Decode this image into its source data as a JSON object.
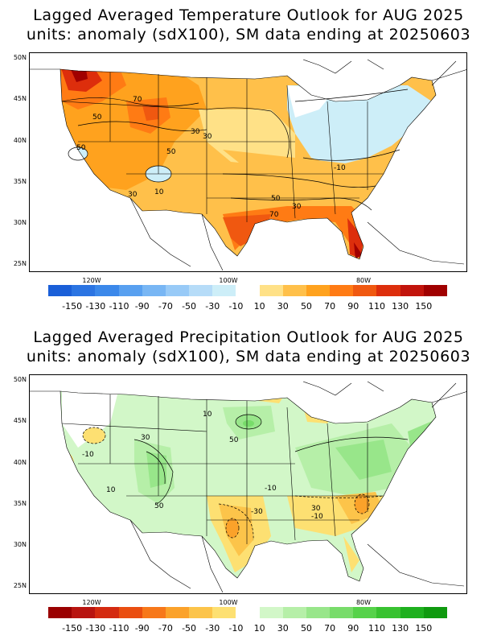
{
  "panels": [
    {
      "title_line1": "Lagged Averaged Temperature Outlook for AUG 2025",
      "title_line2": "units: anomaly (sdX100), SM data ending at 20250603",
      "lat_labels": [
        "50N",
        "45N",
        "40N",
        "35N",
        "30N",
        "25N"
      ],
      "lon_labels": [
        "120W",
        "100W",
        "80W"
      ],
      "colorbar_labels": [
        "-150",
        "-130",
        "-110",
        "-90",
        "-70",
        "-50",
        "-30",
        "-10",
        "10",
        "30",
        "50",
        "70",
        "90",
        "110",
        "130",
        "150"
      ],
      "colorbar_colors": [
        "#1a5fd8",
        "#2b74e2",
        "#3b88ea",
        "#58a0f0",
        "#78b6f4",
        "#98caf7",
        "#b6dcf8",
        "#cdeef8",
        "#ffffff",
        "#ffe187",
        "#ffc04a",
        "#ffa21e",
        "#ff7b14",
        "#f05810",
        "#dd2e0c",
        "#c2140c",
        "#a00000"
      ],
      "contour_labels": [
        "70",
        "50",
        "50",
        "30",
        "50",
        "30",
        "10",
        "30",
        "-10",
        "50",
        "70",
        "30",
        "-50"
      ]
    },
    {
      "title_line1": "Lagged Averaged Precipitation Outlook for AUG 2025",
      "title_line2": "units: anomaly (sdX100), SM data ending at 20250603",
      "lat_labels": [
        "50N",
        "45N",
        "40N",
        "35N",
        "30N",
        "25N"
      ],
      "lon_labels": [
        "120W",
        "100W",
        "80W"
      ],
      "colorbar_labels": [
        "-150",
        "-130",
        "-110",
        "-90",
        "-70",
        "-50",
        "-30",
        "-10",
        "10",
        "30",
        "50",
        "70",
        "90",
        "110",
        "130",
        "150"
      ],
      "colorbar_colors": [
        "#9a0000",
        "#b81410",
        "#d42a10",
        "#ea4e10",
        "#f7781a",
        "#fba22a",
        "#fcc44a",
        "#fde072",
        "#ffffff",
        "#d2f7c8",
        "#b6efa8",
        "#98e68a",
        "#78dc6a",
        "#56d24a",
        "#38c230",
        "#1eb01e",
        "#0f9a0f"
      ],
      "contour_labels": [
        "10",
        "30",
        "50",
        "-10",
        "10",
        "50",
        "-10",
        "-30",
        "30",
        "-10"
      ]
    }
  ]
}
